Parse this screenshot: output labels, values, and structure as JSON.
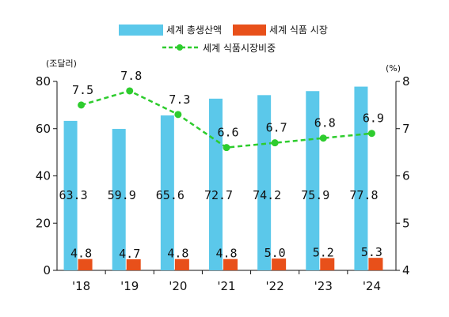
{
  "chart_data": {
    "type": "bar",
    "categories": [
      "'18",
      "'19",
      "'20",
      "'21",
      "'22",
      "'23",
      "'24"
    ],
    "series": [
      {
        "name": "세계 총생산액",
        "type": "bar",
        "axis": "left",
        "color": "#5bc8ea",
        "values": [
          63.3,
          59.9,
          65.6,
          72.7,
          74.2,
          75.9,
          77.8
        ]
      },
      {
        "name": "세계 식품 시장",
        "type": "bar",
        "axis": "left",
        "color": "#e8501a",
        "values": [
          4.8,
          4.7,
          4.8,
          4.8,
          5.0,
          5.2,
          5.3
        ]
      },
      {
        "name": "세계 식품시장비중",
        "type": "line",
        "axis": "right",
        "color": "#2ecc2e",
        "style": "dashed",
        "marker": "circle",
        "values": [
          7.5,
          7.8,
          7.3,
          6.6,
          6.7,
          6.8,
          6.9
        ]
      }
    ],
    "value_labels": {
      "production": [
        "63.3",
        "59.9",
        "65.6",
        "72.7",
        "74.2",
        "75.9",
        "77.8"
      ],
      "food_market": [
        "4.8",
        "4.7",
        "4.8",
        "4.8",
        "5.0",
        "5.2",
        "5.3"
      ],
      "share": [
        "7.5",
        "7.8",
        "7.3",
        "6.6",
        "6.7",
        "6.8",
        "6.9"
      ]
    },
    "ylabel": "(조달러)",
    "y2label": "(%)",
    "ylim": [
      0,
      80
    ],
    "yticks": [
      0,
      20,
      40,
      60,
      80
    ],
    "y2lim": [
      4,
      8
    ],
    "y2ticks": [
      4,
      5,
      6,
      7,
      8
    ],
    "grid": false,
    "legend_position": "top-center"
  }
}
